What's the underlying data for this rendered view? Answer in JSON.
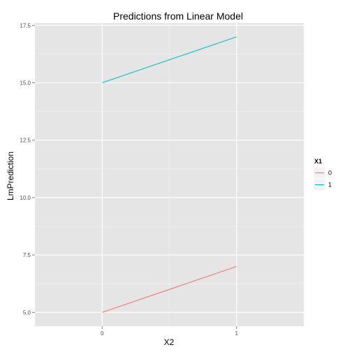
{
  "chart_data": {
    "type": "line",
    "title": "Predictions from Linear Model",
    "xlabel": "X2",
    "ylabel": "LmPrediction",
    "xlim": [
      -0.5,
      1.5
    ],
    "ylim": [
      4.4,
      17.6
    ],
    "x_ticks": [
      0,
      1
    ],
    "x_tick_labels": [
      "0",
      "1"
    ],
    "y_ticks": [
      5.0,
      7.5,
      10.0,
      12.5,
      15.0,
      17.5
    ],
    "y_tick_labels": [
      "5.0",
      "7.5",
      "10.0",
      "12.5",
      "15.0",
      "17.5"
    ],
    "grid": true,
    "legend": {
      "title": "X1",
      "position": "right"
    },
    "series": [
      {
        "name": "0",
        "color": "#F8766D",
        "x": [
          0,
          1
        ],
        "y": [
          5.0,
          7.0
        ]
      },
      {
        "name": "1",
        "color": "#00BFC4",
        "x": [
          0,
          1
        ],
        "y": [
          15.0,
          17.0
        ]
      }
    ]
  }
}
